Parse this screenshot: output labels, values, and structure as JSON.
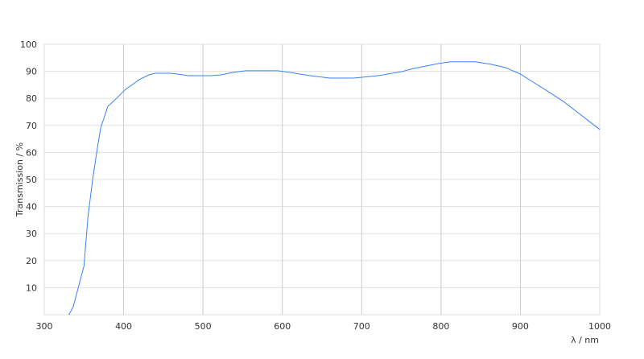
{
  "chart_data": {
    "type": "line",
    "title": "",
    "xlabel": "λ / nm",
    "ylabel": "Transmission / %",
    "xlim": [
      300,
      1000
    ],
    "ylim": [
      0,
      100
    ],
    "xticks": [
      "300",
      "400",
      "500",
      "600",
      "700",
      "800",
      "900",
      "1000"
    ],
    "yticks": [
      "10",
      "20",
      "30",
      "40",
      "50",
      "60",
      "70",
      "80",
      "90",
      "100"
    ],
    "grid": true,
    "line_color": "#3b82f6",
    "series": [
      {
        "x": [
          331,
          336.5,
          350,
          355,
          361,
          366,
          371,
          380,
          391,
          401,
          420,
          432,
          440,
          460,
          475,
          481,
          510,
          523,
          538,
          554,
          594,
          609,
          635,
          660,
          690,
          721,
          751,
          762,
          782,
          797,
          812,
          843,
          863,
          881,
          900,
          916,
          934,
          954,
          1000
        ],
        "y": [
          0,
          3,
          18,
          36,
          50,
          60,
          69,
          77,
          80,
          83,
          87,
          88.7,
          89.3,
          89.3,
          88.7,
          88.4,
          88.4,
          88.7,
          89.6,
          90.2,
          90.2,
          89.6,
          88.4,
          87.5,
          87.5,
          88.4,
          89.9,
          90.8,
          92,
          92.9,
          93.5,
          93.5,
          92.6,
          91.4,
          89,
          86,
          82.7,
          78.9,
          68.5
        ]
      }
    ]
  }
}
